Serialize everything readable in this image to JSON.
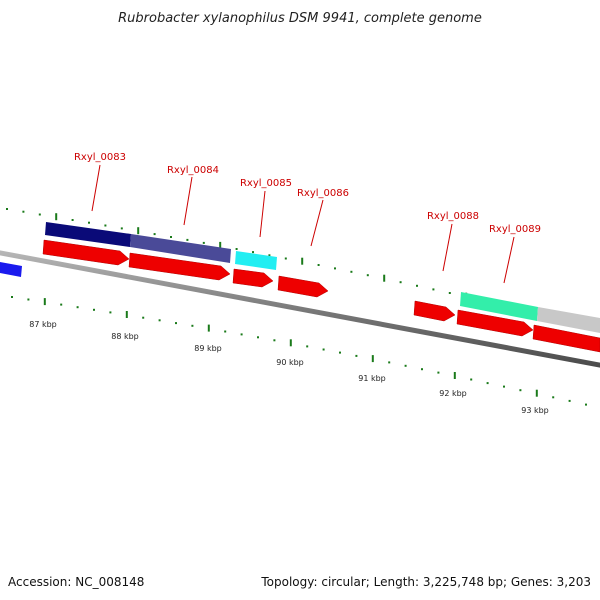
{
  "title": "Rubrobacter xylanophilus DSM 9941, complete genome",
  "footer": {
    "accession": "Accession: NC_008148",
    "summary": "Topology: circular; Length: 3,225,748 bp; Genes: 3,203"
  },
  "gene_labels": [
    "Rxyl_0083",
    "Rxyl_0084",
    "Rxyl_0085",
    "Rxyl_0086",
    "Rxyl_0088",
    "Rxyl_0089"
  ],
  "kbp_labels": [
    "87 kbp",
    "88 kbp",
    "89 kbp",
    "90 kbp",
    "91 kbp",
    "92 kbp",
    "93 kbp"
  ],
  "colors": {
    "backbone": "#7f7f7f",
    "cds_arrow": "#ee0000",
    "tick": "#1a7a1a",
    "label": "#cc0000",
    "feature_navy": "#0a0a78",
    "feature_slate": "#4a4a98",
    "feature_cyan": "#22eef2",
    "feature_mint": "#33eeaa",
    "feature_grey": "#c8c8c8",
    "feature_blue": "#1a1aee"
  }
}
